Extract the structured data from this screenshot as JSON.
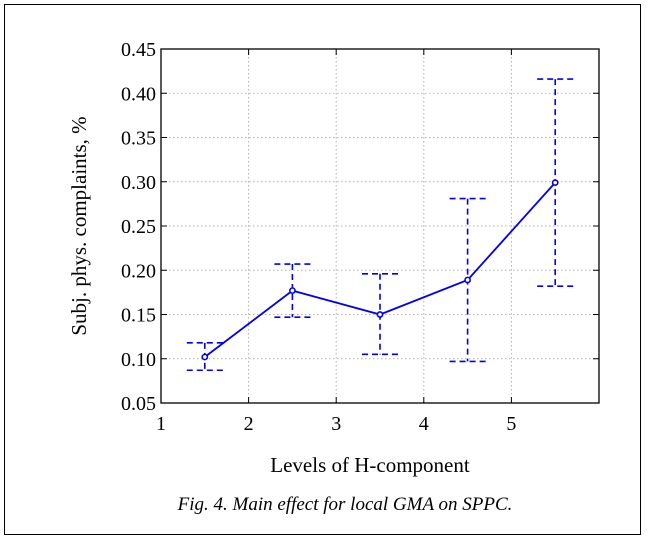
{
  "caption": "Fig. 4. Main effect for local GMA on SPPC.",
  "chart_data": {
    "type": "line",
    "title": "",
    "xlabel": "Levels of H-component",
    "ylabel": "Subj. phys. complaints, %",
    "xlim": [
      1,
      6
    ],
    "ylim": [
      0.05,
      0.45
    ],
    "xticks": [
      1,
      2,
      3,
      4,
      5
    ],
    "yticks": [
      "0.05",
      "0.10",
      "0.15",
      "0.20",
      "0.25",
      "0.30",
      "0.35",
      "0.40",
      "0.45"
    ],
    "grid": true,
    "series": [
      {
        "x": [
          1.5,
          2.5,
          3.5,
          4.5,
          5.5
        ],
        "y": [
          0.102,
          0.177,
          0.15,
          0.189,
          0.299
        ],
        "err_low": [
          0.087,
          0.147,
          0.105,
          0.097,
          0.182
        ],
        "err_high": [
          0.118,
          0.207,
          0.196,
          0.281,
          0.416
        ],
        "color": "#0000ee"
      }
    ]
  }
}
